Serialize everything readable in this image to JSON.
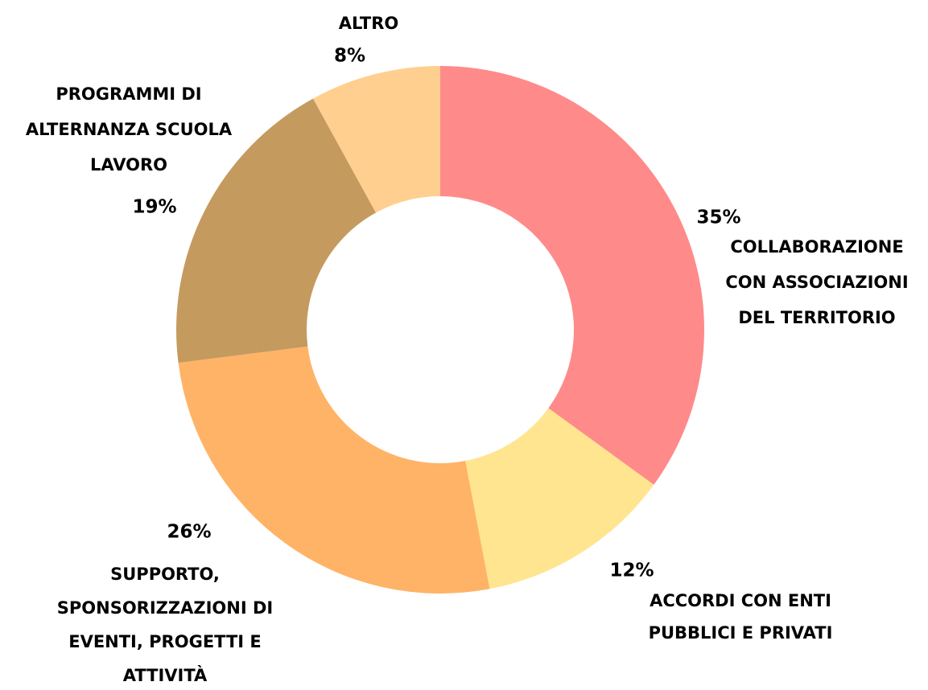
{
  "chart_data": {
    "type": "donut",
    "categories": [
      "COLLABORAZIONE CON ASSOCIAZIONI DEL TERRITORIO",
      "ACCORDI CON ENTI PUBBLICI E PRIVATI",
      "SUPPORTO, SPONSORIZZAZIONI DI EVENTI, PROGETTI E ATTIVITÀ",
      "PROGRAMMI DI ALTERNANZA SCUOLA LAVORO",
      "ALTRO"
    ],
    "values": [
      35,
      12,
      26,
      19,
      8
    ],
    "value_labels": [
      "35%",
      "12%",
      "26%",
      "19%",
      "8%"
    ],
    "colors": [
      "#ff8a8a",
      "#ffe58f",
      "#ffb366",
      "#c49a5e",
      "#ffcf8f"
    ]
  }
}
